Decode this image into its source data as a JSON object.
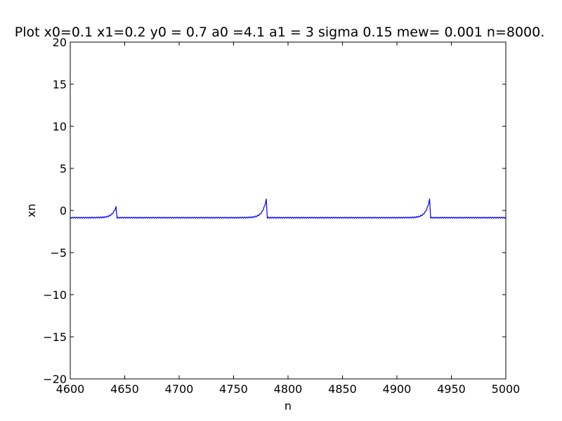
{
  "chart_data": {
    "type": "line",
    "title": "Plot x0=0.1 x1=0.2  y0 = 0.7 a0 =4.1 a1 = 3 sigma 0.15 mew= 0.001 n=8000.",
    "xlabel": "n",
    "ylabel": "xn",
    "xlim": [
      4600,
      5000
    ],
    "ylim": [
      -20,
      20
    ],
    "x_ticks": [
      4600,
      4650,
      4700,
      4750,
      4800,
      4850,
      4900,
      4950,
      5000
    ],
    "x_tick_labels": [
      "4600",
      "4650",
      "4700",
      "4750",
      "4800",
      "4850",
      "4900",
      "4950",
      "5000"
    ],
    "y_ticks": [
      20,
      15,
      10,
      5,
      0,
      -5,
      -10,
      -15,
      -20
    ],
    "y_tick_labels": [
      "20",
      "15",
      "10",
      "5",
      "0",
      "−5",
      "−10",
      "−15",
      "−20"
    ],
    "grid": false,
    "legend": "none",
    "series": [
      {
        "color": "#0000ff",
        "baseline": -0.85,
        "oscillation_amplitude": 0.12,
        "peaks": [
          {
            "n": 4642,
            "value": 0.4
          },
          {
            "n": 4780,
            "value": 1.3
          },
          {
            "n": 4930,
            "value": 1.3
          }
        ]
      }
    ]
  }
}
